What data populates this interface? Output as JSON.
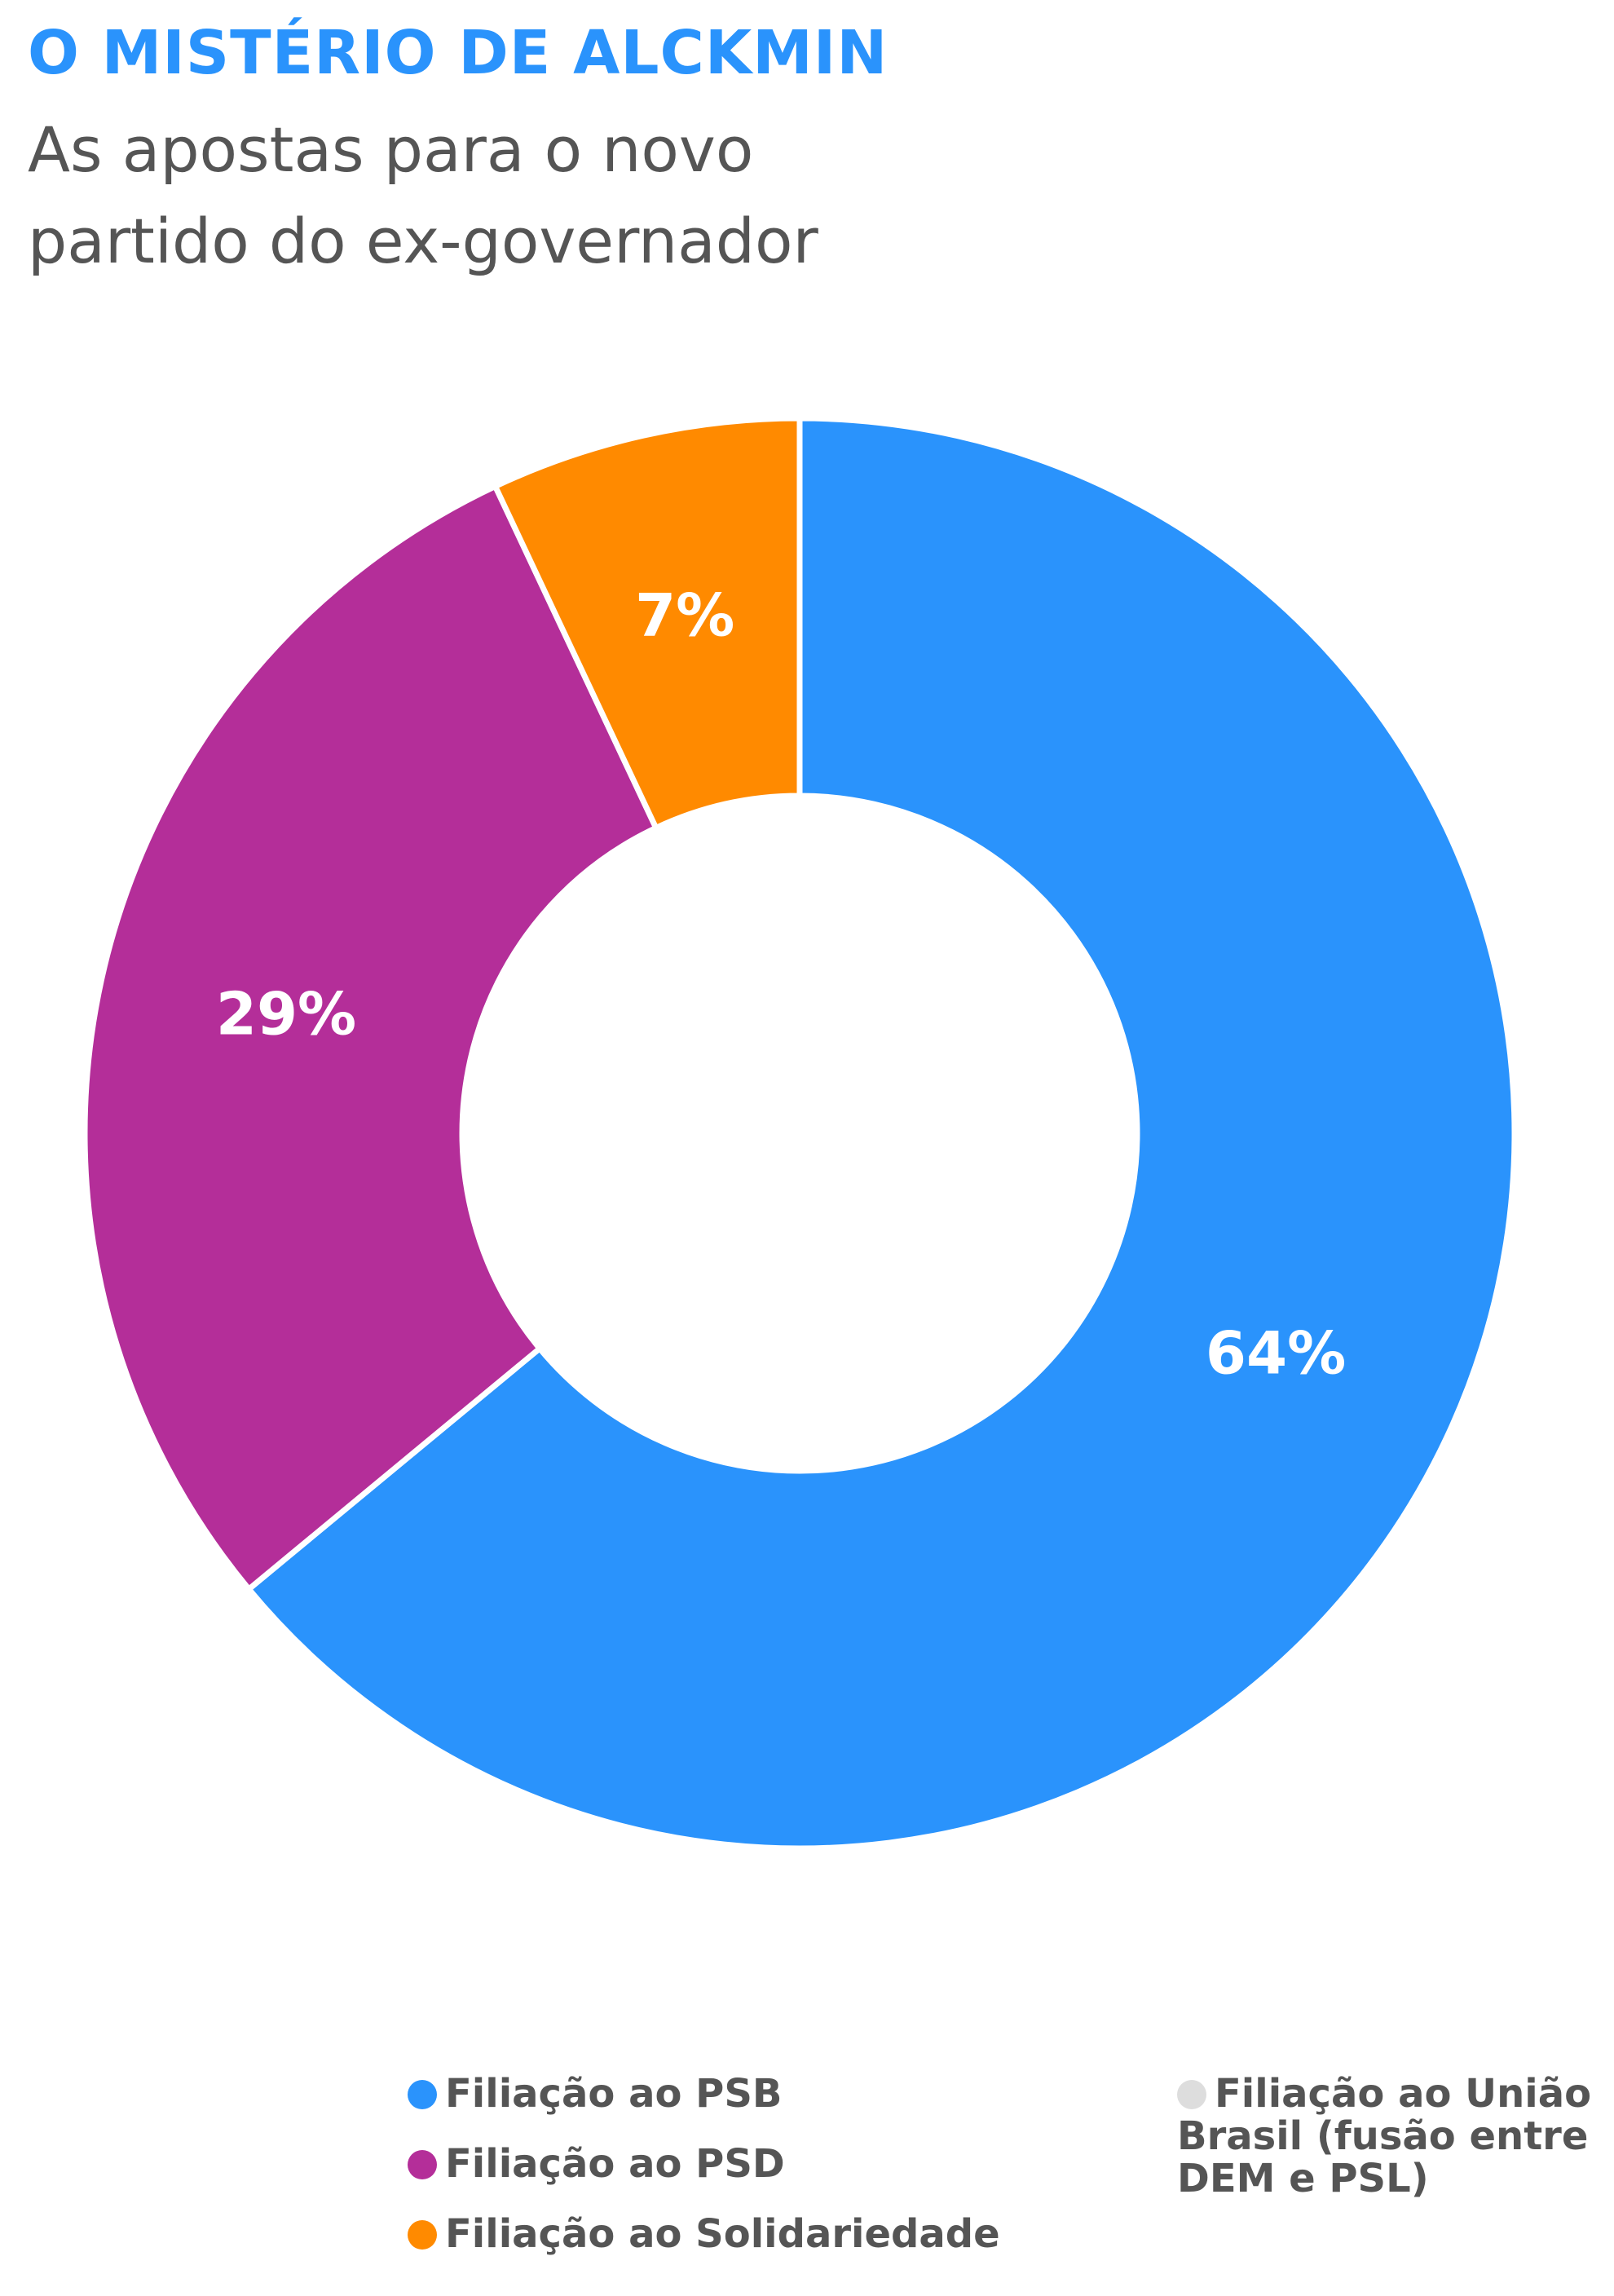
{
  "chart_data": {
    "type": "donut",
    "title": "O MISTÉRIO DE ALCKMIN",
    "subtitle": "As apostas para o novo\npartido do ex-governador",
    "categories": [
      "Filiação ao PSB",
      "Filiação ao PSD",
      "Filiação ao Solidariedade",
      "Filiação ao União Brasil (fusão entre DEM e PSL)"
    ],
    "values": [
      64,
      29,
      7,
      0
    ],
    "value_labels": [
      "64%",
      "29%",
      "7%",
      null
    ],
    "colors": [
      "#2a93fc",
      "#b42e99",
      "#ff8a00",
      "#dddddd"
    ]
  }
}
